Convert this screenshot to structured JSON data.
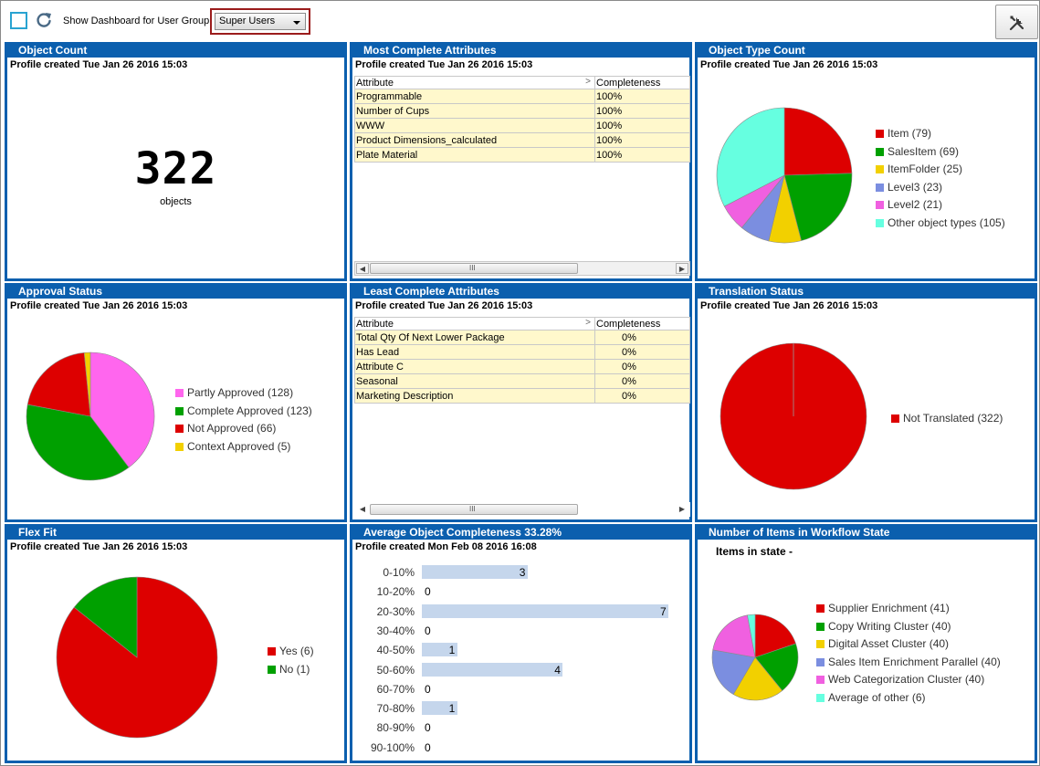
{
  "toolbar": {
    "group_label": "Show Dashboard for User Group:",
    "group_value": "Super Users"
  },
  "panels": {
    "object_count": {
      "title": "Object Count",
      "profile": "Profile created Tue Jan 26 2016 15:03",
      "value": "322",
      "caption": "objects"
    },
    "most_complete": {
      "title": "Most Complete Attributes",
      "profile": "Profile created Tue Jan 26 2016 15:03",
      "col_attribute": "Attribute",
      "col_completeness": "Completeness",
      "rows": [
        {
          "attribute": "Programmable",
          "completeness": "100%"
        },
        {
          "attribute": "Number of Cups",
          "completeness": "100%"
        },
        {
          "attribute": "WWW",
          "completeness": "100%"
        },
        {
          "attribute": "Product Dimensions_calculated",
          "completeness": "100%"
        },
        {
          "attribute": "Plate Material",
          "completeness": "100%"
        }
      ]
    },
    "object_type": {
      "title": "Object Type Count",
      "profile": "Profile created Tue Jan 26 2016 15:03"
    },
    "approval": {
      "title": "Approval Status",
      "profile": "Profile created Tue Jan 26 2016 15:03"
    },
    "least_complete": {
      "title": "Least Complete Attributes",
      "profile": "Profile created Tue Jan 26 2016 15:03",
      "col_attribute": "Attribute",
      "col_completeness": "Completeness",
      "rows": [
        {
          "attribute": "Total Qty Of Next Lower Package",
          "completeness": "0%"
        },
        {
          "attribute": "Has Lead",
          "completeness": "0%"
        },
        {
          "attribute": "Attribute C",
          "completeness": "0%"
        },
        {
          "attribute": "Seasonal",
          "completeness": "0%"
        },
        {
          "attribute": "Marketing Description",
          "completeness": "0%"
        }
      ]
    },
    "translation": {
      "title": "Translation Status",
      "profile": "Profile created Tue Jan 26 2016 15:03"
    },
    "flex_fit": {
      "title": "Flex Fit",
      "profile": "Profile created Tue Jan 26 2016 15:03"
    },
    "avg_completeness": {
      "title": "Average Object Completeness 33.28%",
      "profile": "Profile created Mon Feb 08 2016 16:08"
    },
    "workflow": {
      "title": "Number of Items in Workflow State",
      "subtitle": "Items in state -"
    }
  },
  "chart_data": [
    {
      "id": "object_type",
      "type": "pie",
      "series": [
        {
          "label": "Item (79)",
          "value": 79,
          "color": "#dd0000"
        },
        {
          "label": "SalesItem (69)",
          "value": 69,
          "color": "#00a000"
        },
        {
          "label": "ItemFolder (25)",
          "value": 25,
          "color": "#f2d000"
        },
        {
          "label": "Level3 (23)",
          "value": 23,
          "color": "#7b8ee0"
        },
        {
          "label": "Level2 (21)",
          "value": 21,
          "color": "#f060e0"
        },
        {
          "label": "Other object types (105)",
          "value": 105,
          "color": "#66ffe0"
        }
      ]
    },
    {
      "id": "approval",
      "type": "pie",
      "series": [
        {
          "label": "Partly Approved (128)",
          "value": 128,
          "color": "#ff66ee"
        },
        {
          "label": "Complete Approved (123)",
          "value": 123,
          "color": "#00a000"
        },
        {
          "label": "Not Approved (66)",
          "value": 66,
          "color": "#dd0000"
        },
        {
          "label": "Context Approved (5)",
          "value": 5,
          "color": "#f2d000"
        }
      ]
    },
    {
      "id": "translation",
      "type": "pie",
      "series": [
        {
          "label": "Not Translated (322)",
          "value": 322,
          "color": "#dd0000"
        }
      ]
    },
    {
      "id": "flex_fit",
      "type": "pie",
      "series": [
        {
          "label": "Yes (6)",
          "value": 6,
          "color": "#dd0000"
        },
        {
          "label": "No (1)",
          "value": 1,
          "color": "#00a000"
        }
      ]
    },
    {
      "id": "avg_completeness",
      "type": "bar",
      "orientation": "horizontal",
      "categories": [
        "0-10%",
        "10-20%",
        "20-30%",
        "30-40%",
        "40-50%",
        "50-60%",
        "60-70%",
        "70-80%",
        "80-90%",
        "90-100%"
      ],
      "values": [
        3,
        0,
        7,
        0,
        1,
        4,
        0,
        1,
        0,
        0
      ],
      "xlim": [
        0,
        7
      ],
      "color": "#c5d6ec"
    },
    {
      "id": "workflow",
      "type": "pie",
      "series": [
        {
          "label": "Supplier Enrichment (41)",
          "value": 41,
          "color": "#dd0000"
        },
        {
          "label": "Copy Writing Cluster (40)",
          "value": 40,
          "color": "#00a000"
        },
        {
          "label": "Digital Asset Cluster (40)",
          "value": 40,
          "color": "#f2d000"
        },
        {
          "label": "Sales Item Enrichment Parallel (40)",
          "value": 40,
          "color": "#7b8ee0"
        },
        {
          "label": "Web Categorization Cluster (40)",
          "value": 40,
          "color": "#f060e0"
        },
        {
          "label": "Average of other (6)",
          "value": 6,
          "color": "#66ffe0"
        }
      ]
    }
  ]
}
